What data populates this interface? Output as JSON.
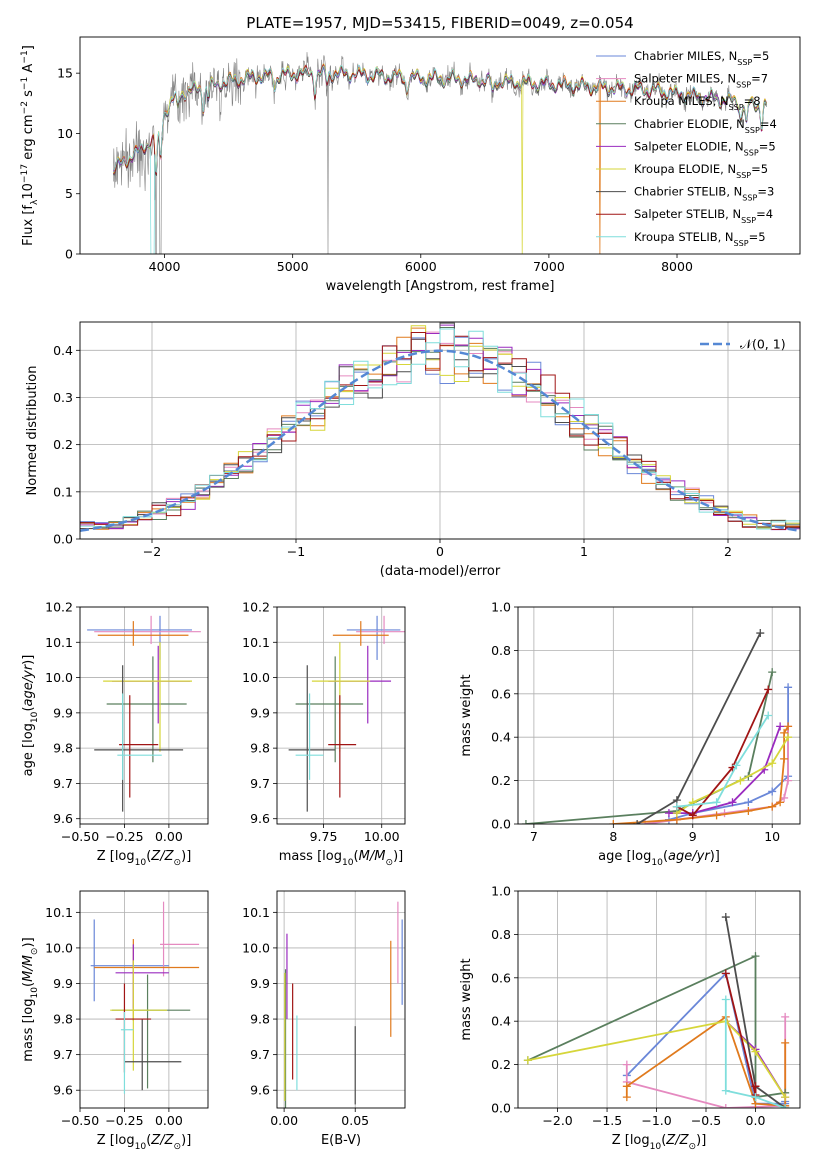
{
  "figure_title": "PLATE=1957, MJD=53415, FIBERID=0049, z=0.054",
  "models": [
    {
      "name": "Chabrier MILES, N$_{SSP}$=5",
      "color": "#6a87d8"
    },
    {
      "name": "Salpeter MILES, N$_{SSP}$=7",
      "color": "#e58ac0"
    },
    {
      "name": "Kroupa MILES, N$_{SSP}$=8",
      "color": "#e07a1d"
    },
    {
      "name": "Chabrier ELODIE, N$_{SSP}$=4",
      "color": "#5a7f5e"
    },
    {
      "name": "Salpeter ELODIE, N$_{SSP}$=5",
      "color": "#9a2bbf"
    },
    {
      "name": "Kroupa ELODIE, N$_{SSP}$=5",
      "color": "#d6d63a"
    },
    {
      "name": "Chabrier STELIB, N$_{SSP}$=3",
      "color": "#4d4d4d"
    },
    {
      "name": "Salpeter STELIB, N$_{SSP}$=4",
      "color": "#a01515"
    },
    {
      "name": "Kroupa STELIB, N$_{SSP}$=5",
      "color": "#7fdedc"
    }
  ],
  "chart_data": [
    {
      "id": "spectrum",
      "type": "line",
      "xlabel": "wavelength [Angstrom, rest frame]",
      "ylabel": "Flux [f$_\\lambda$10$^{-17}$ erg cm$^{-2}$ s$^{-1}$ A$^{-1}$]",
      "xlim": [
        3340,
        8960
      ],
      "ylim": [
        0,
        18
      ],
      "xticks": [
        4000,
        5000,
        6000,
        7000,
        8000
      ],
      "yticks": [
        0,
        5,
        10,
        15
      ],
      "data_color": "#808080",
      "continuum": [
        [
          3600,
          7.0
        ],
        [
          3700,
          7.8
        ],
        [
          3800,
          8.5
        ],
        [
          3880,
          9.2
        ],
        [
          3950,
          10.2
        ],
        [
          4000,
          11.8
        ],
        [
          4100,
          13.2
        ],
        [
          4300,
          13.8
        ],
        [
          4500,
          14.3
        ],
        [
          4700,
          14.7
        ],
        [
          5000,
          14.9
        ],
        [
          5200,
          15.0
        ],
        [
          5500,
          14.9
        ],
        [
          5800,
          14.7
        ],
        [
          6000,
          14.6
        ],
        [
          6300,
          14.5
        ],
        [
          6600,
          14.3
        ],
        [
          7000,
          14.1
        ],
        [
          7400,
          13.8
        ],
        [
          7800,
          13.6
        ],
        [
          8200,
          13.0
        ],
        [
          8500,
          12.6
        ],
        [
          8700,
          12.3
        ]
      ],
      "model_range": [
        3600,
        8700
      ],
      "data_range": [
        3600,
        8440
      ]
    },
    {
      "id": "residuals",
      "type": "line",
      "xlabel": "(data-model)/error",
      "ylabel": "Normed distribution",
      "xlim": [
        -2.5,
        2.5
      ],
      "ylim": [
        0,
        0.46
      ],
      "xticks": [
        -2,
        -1,
        0,
        1,
        2
      ],
      "yticks": [
        0.0,
        0.1,
        0.2,
        0.3,
        0.4
      ],
      "grid": true,
      "bin_width": 0.1,
      "gaussian_label": "$\\mathcal{N}(0,1)$",
      "gaussian_color": "#5588d4",
      "legend": "top-right"
    },
    {
      "id": "age_vs_Z",
      "type": "scatter",
      "xlabel": "Z [log$_{10}$($Z/Z_\\odot$)]",
      "ylabel": "age  [log$_{10}$($age/yr$)]",
      "xlim": [
        -0.5,
        0.22
      ],
      "ylim": [
        9.585,
        10.2
      ],
      "xticks": [
        -0.5,
        -0.25,
        0.0
      ],
      "xticklabels": [
        "−0.50",
        "−0.25",
        "0.00"
      ],
      "yticks": [
        9.6,
        9.7,
        9.8,
        9.9,
        10.0,
        10.1,
        10.2
      ],
      "grid": true,
      "points": [
        {
          "x": -0.05,
          "y": 10.135,
          "xerr": [
            0.41,
            0.18
          ],
          "yerr": [
            0.085,
            0.04
          ]
        },
        {
          "x": -0.1,
          "y": 10.13,
          "xerr": [
            0.32,
            0.28
          ],
          "yerr": [
            0.035,
            0.045
          ]
        },
        {
          "x": -0.2,
          "y": 10.12,
          "xerr": [
            0.2,
            0.31
          ],
          "yerr": [
            0.03,
            0.04
          ]
        },
        {
          "x": -0.09,
          "y": 9.925,
          "xerr": [
            0.26,
            0.19
          ],
          "yerr": [
            0.165,
            0.135
          ]
        },
        {
          "x": -0.06,
          "y": 9.99,
          "xerr": [
            0.26,
            0.18
          ],
          "yerr": [
            0.12,
            0.1
          ]
        },
        {
          "x": -0.05,
          "y": 9.99,
          "xerr": [
            0.32,
            0.18
          ],
          "yerr": [
            0.2,
            0.11
          ]
        },
        {
          "x": -0.26,
          "y": 9.795,
          "xerr": [
            0.16,
            0.34
          ],
          "yerr": [
            0.175,
            0.24
          ]
        },
        {
          "x": -0.22,
          "y": 9.81,
          "xerr": [
            0.06,
            0.16
          ],
          "yerr": [
            0.15,
            0.14
          ]
        },
        {
          "x": -0.26,
          "y": 9.78,
          "xerr": [
            0.03,
            0.22
          ],
          "yerr": [
            0.07,
            0.175
          ]
        }
      ]
    },
    {
      "id": "age_vs_mass",
      "type": "scatter",
      "xlabel": "mass [log$_{10}$($M/M_\\odot$)]",
      "ylabel": "",
      "xlim": [
        9.55,
        10.1
      ],
      "ylim": [
        9.585,
        10.2
      ],
      "xticks": [
        9.75,
        10.0
      ],
      "xticklabels": [
        "9.75",
        "10.00"
      ],
      "yticks": [
        9.6,
        9.7,
        9.8,
        9.9,
        10.0,
        10.1,
        10.2
      ],
      "grid": true,
      "points": [
        {
          "x": 9.98,
          "y": 10.135,
          "xerr": [
            0.13,
            0.1
          ],
          "yerr": [
            0.085,
            0.04
          ]
        },
        {
          "x": 10.01,
          "y": 10.13,
          "xerr": [
            0.12,
            0.1
          ],
          "yerr": [
            0.035,
            0.045
          ]
        },
        {
          "x": 9.91,
          "y": 10.12,
          "xerr": [
            0.12,
            0.12
          ],
          "yerr": [
            0.03,
            0.04
          ]
        },
        {
          "x": 9.8,
          "y": 9.925,
          "xerr": [
            0.17,
            0.12
          ],
          "yerr": [
            0.165,
            0.135
          ]
        },
        {
          "x": 9.94,
          "y": 9.99,
          "xerr": [
            0.17,
            0.1
          ],
          "yerr": [
            0.12,
            0.1
          ]
        },
        {
          "x": 9.82,
          "y": 9.99,
          "xerr": [
            0.12,
            0.13
          ],
          "yerr": [
            0.2,
            0.11
          ]
        },
        {
          "x": 9.68,
          "y": 9.795,
          "xerr": [
            0.08,
            0.12
          ],
          "yerr": [
            0.175,
            0.24
          ]
        },
        {
          "x": 9.82,
          "y": 9.81,
          "xerr": [
            0.05,
            0.07
          ],
          "yerr": [
            0.15,
            0.14
          ]
        },
        {
          "x": 9.69,
          "y": 9.78,
          "xerr": [
            0.06,
            0.06
          ],
          "yerr": [
            0.07,
            0.175
          ]
        }
      ]
    },
    {
      "id": "weight_vs_age",
      "type": "line",
      "xlabel": "age  [log$_{10}$($age/yr$)]",
      "ylabel": "mass weight",
      "xlim": [
        6.8,
        10.35
      ],
      "ylim": [
        0,
        1.0
      ],
      "xticks": [
        7,
        8,
        9,
        10
      ],
      "yticks": [
        0.0,
        0.2,
        0.4,
        0.6,
        0.8,
        1.0
      ],
      "grid": true,
      "series": [
        {
          "x": [
            8.7,
            9.0,
            9.7,
            10.0,
            10.2,
            10.2
          ],
          "y": [
            0.02,
            0.05,
            0.1,
            0.15,
            0.22,
            0.63
          ]
        },
        {
          "x": [
            8.4,
            8.8,
            9.4,
            10.0,
            10.15,
            10.2,
            10.2
          ],
          "y": [
            0.0,
            0.02,
            0.05,
            0.08,
            0.12,
            0.2,
            0.45
          ]
        },
        {
          "x": [
            8.0,
            8.8,
            9.3,
            9.7,
            10.0,
            10.1,
            10.15,
            10.15,
            10.2
          ],
          "y": [
            0.0,
            0.02,
            0.04,
            0.06,
            0.08,
            0.1,
            0.3,
            0.42,
            0.45
          ]
        },
        {
          "x": [
            6.9,
            8.8,
            9.7,
            10.0
          ],
          "y": [
            0.0,
            0.06,
            0.22,
            0.7
          ]
        },
        {
          "x": [
            8.7,
            9.0,
            9.5,
            9.9,
            10.1
          ],
          "y": [
            0.05,
            0.05,
            0.1,
            0.25,
            0.45
          ]
        },
        {
          "x": [
            8.8,
            9.0,
            9.6,
            10.0,
            10.2
          ],
          "y": [
            0.05,
            0.1,
            0.2,
            0.28,
            0.4
          ]
        },
        {
          "x": [
            8.3,
            8.8,
            9.85
          ],
          "y": [
            0.0,
            0.11,
            0.88
          ]
        },
        {
          "x": [
            8.8,
            9.0,
            9.5,
            9.95
          ],
          "y": [
            0.08,
            0.04,
            0.26,
            0.62
          ]
        },
        {
          "x": [
            8.8,
            9.3,
            9.55,
            9.95
          ],
          "y": [
            0.08,
            0.1,
            0.27,
            0.5
          ]
        }
      ]
    },
    {
      "id": "mass_vs_Z",
      "type": "scatter",
      "xlabel": "Z [log$_{10}$($Z/Z_\\odot$)]",
      "ylabel": "mass [log$_{10}$($M/M_\\odot$)]",
      "xlim": [
        -0.5,
        0.22
      ],
      "ylim": [
        9.55,
        10.16
      ],
      "xticks": [
        -0.5,
        -0.25,
        0.0
      ],
      "xticklabels": [
        "−0.50",
        "−0.25",
        "0.00"
      ],
      "yticks": [
        9.6,
        9.7,
        9.8,
        9.9,
        10.0,
        10.1
      ],
      "grid": true,
      "points": [
        {
          "x": -0.42,
          "y": 9.95,
          "xerr": [
            0.02,
            0.42
          ],
          "yerr": [
            0.1,
            0.13
          ]
        },
        {
          "x": -0.03,
          "y": 10.01,
          "xerr": [
            0.02,
            0.2
          ],
          "yerr": [
            0.09,
            0.12
          ]
        },
        {
          "x": -0.2,
          "y": 9.945,
          "xerr": [
            0.22,
            0.37
          ],
          "yerr": [
            0.15,
            0.08
          ]
        },
        {
          "x": -0.12,
          "y": 9.825,
          "xerr": [
            0.2,
            0.24
          ],
          "yerr": [
            0.22,
            0.1
          ]
        },
        {
          "x": -0.2,
          "y": 9.93,
          "xerr": [
            0.1,
            0.2
          ],
          "yerr": [
            0.1,
            0.08
          ]
        },
        {
          "x": -0.2,
          "y": 9.825,
          "xerr": [
            0.13,
            0.19
          ],
          "yerr": [
            0.17,
            0.14
          ]
        },
        {
          "x": -0.15,
          "y": 9.68,
          "xerr": [
            0.1,
            0.22
          ],
          "yerr": [
            0.08,
            0.12
          ]
        },
        {
          "x": -0.25,
          "y": 9.8,
          "xerr": [
            0.05,
            0.15
          ],
          "yerr": [
            0.15,
            0.1
          ]
        },
        {
          "x": -0.25,
          "y": 9.77,
          "xerr": [
            0.02,
            0.05
          ],
          "yerr": [
            0.18,
            0.05
          ]
        }
      ]
    },
    {
      "id": "mass_vs_EBV",
      "type": "scatter",
      "xlabel": "E(B-V)",
      "ylabel": "",
      "xlim": [
        -0.005,
        0.085
      ],
      "ylim": [
        9.55,
        10.16
      ],
      "xticks": [
        0.0,
        0.05
      ],
      "xticklabels": [
        "0.00",
        "0.05"
      ],
      "yticks": [
        9.6,
        9.7,
        9.8,
        9.9,
        10.0,
        10.1
      ],
      "grid": true,
      "points": [
        {
          "x": 0.083,
          "y": 9.96,
          "yerr": [
            0.12,
            0.12
          ]
        },
        {
          "x": 0.08,
          "y": 10.0,
          "yerr": [
            0.1,
            0.13
          ]
        },
        {
          "x": 0.075,
          "y": 9.89,
          "yerr": [
            0.14,
            0.13
          ]
        },
        {
          "x": 0.001,
          "y": 9.67,
          "yerr": [
            0.12,
            0.27
          ]
        },
        {
          "x": 0.002,
          "y": 9.94,
          "yerr": [
            0.14,
            0.1
          ]
        },
        {
          "x": 0.0005,
          "y": 9.75,
          "yerr": [
            0.18,
            0.18
          ]
        },
        {
          "x": 0.05,
          "y": 9.68,
          "yerr": [
            0.12,
            0.1
          ]
        },
        {
          "x": 0.006,
          "y": 9.77,
          "yerr": [
            0.14,
            0.13
          ]
        },
        {
          "x": 0.009,
          "y": 9.7,
          "yerr": [
            0.1,
            0.11
          ]
        }
      ]
    },
    {
      "id": "weight_vs_Z",
      "type": "line",
      "xlabel": "Z [log$_{10}$($Z/Z_\\odot$)]",
      "ylabel": "mass weight",
      "xlim": [
        -2.4,
        0.45
      ],
      "ylim": [
        0,
        1.0
      ],
      "xticks": [
        -2.0,
        -1.5,
        -1.0,
        -0.5,
        0.0
      ],
      "xticklabels": [
        "−2.0",
        "−1.5",
        "−1.0",
        "−0.5",
        "0.0"
      ],
      "yticks": [
        0.0,
        0.2,
        0.4,
        0.6,
        0.8,
        1.0
      ],
      "grid": true,
      "series": [
        {
          "x": [
            -1.3,
            -0.3,
            0.0,
            0.3,
            0.3
          ],
          "y": [
            0.15,
            0.62,
            0.02,
            0.02,
            0.03
          ]
        },
        {
          "x": [
            -1.3,
            -1.3,
            -0.3,
            0.3,
            0.3
          ],
          "y": [
            0.2,
            0.12,
            0.0,
            0.01,
            0.42
          ]
        },
        {
          "x": [
            -1.3,
            -1.3,
            -0.3,
            0.0,
            0.3,
            0.3
          ],
          "y": [
            0.05,
            0.1,
            0.42,
            0.02,
            0.01,
            0.3
          ]
        },
        {
          "x": [
            -2.3,
            0.0,
            0.0,
            0.3
          ],
          "y": [
            0.22,
            0.7,
            0.05,
            0.07
          ]
        },
        {
          "x": [
            -0.3,
            0.0,
            0.3
          ],
          "y": [
            0.4,
            0.27,
            0.05
          ]
        },
        {
          "x": [
            -2.3,
            -0.3,
            0.0,
            0.3
          ],
          "y": [
            0.22,
            0.4,
            0.26,
            0.05
          ]
        },
        {
          "x": [
            -0.3,
            0.0,
            0.3
          ],
          "y": [
            0.88,
            0.1,
            0.0
          ]
        },
        {
          "x": [
            -0.3,
            0.0,
            0.0
          ],
          "y": [
            0.62,
            0.06,
            0.1
          ]
        },
        {
          "x": [
            -0.3,
            -0.3,
            0.0,
            0.3
          ],
          "y": [
            0.5,
            0.08,
            0.05,
            0.0
          ]
        }
      ]
    }
  ]
}
